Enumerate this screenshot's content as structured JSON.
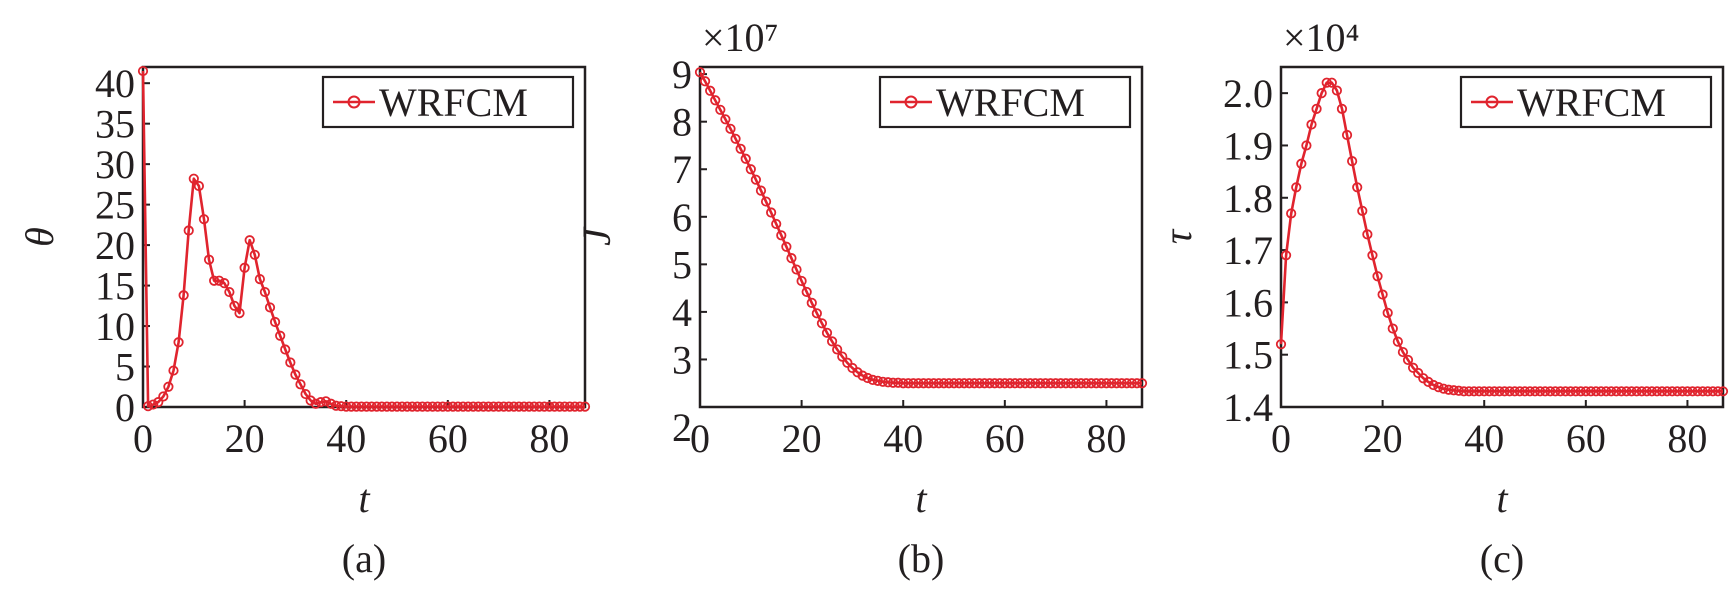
{
  "colors": {
    "series": "#e0242e",
    "ink": "#231f20"
  },
  "chart_data": [
    {
      "type": "line",
      "panel_label": "(a)",
      "xlabel": "t",
      "ylabel": "θ",
      "multiplier": "",
      "xlim": [
        0,
        87
      ],
      "ylim": [
        0,
        42
      ],
      "xticks": [
        0,
        20,
        40,
        60,
        80
      ],
      "yticks": [
        0,
        5,
        10,
        15,
        20,
        25,
        30,
        35,
        40
      ],
      "ytick_labels": [
        "0",
        "5",
        "10",
        "15",
        "20",
        "25",
        "30",
        "35",
        "40"
      ],
      "legend_position": "top-right",
      "series": [
        {
          "name": "WRFCM",
          "x": [
            0,
            1,
            2,
            3,
            4,
            5,
            6,
            7,
            8,
            9,
            10,
            11,
            12,
            13,
            14,
            15,
            16,
            17,
            18,
            19,
            20,
            21,
            22,
            23,
            24,
            25,
            26,
            27,
            28,
            29,
            30,
            31,
            32,
            33,
            34,
            35,
            36,
            37,
            38,
            39,
            40,
            41,
            42,
            43,
            44,
            45,
            46,
            47,
            48,
            49,
            50,
            51,
            52,
            53,
            54,
            55,
            56,
            57,
            58,
            59,
            60,
            61,
            62,
            63,
            64,
            65,
            66,
            67,
            68,
            69,
            70,
            71,
            72,
            73,
            74,
            75,
            76,
            77,
            78,
            79,
            80,
            81,
            82,
            83,
            84,
            85,
            86,
            87
          ],
          "y": [
            41.5,
            0.1,
            0.3,
            0.6,
            1.3,
            2.5,
            4.5,
            8,
            13.8,
            21.8,
            28.2,
            27.3,
            23.2,
            18.2,
            15.6,
            15.6,
            15.3,
            14.2,
            12.5,
            11.6,
            17.2,
            20.6,
            18.8,
            15.8,
            14.2,
            12.3,
            10.5,
            8.8,
            7.1,
            5.5,
            4.0,
            2.8,
            1.6,
            0.8,
            0.4,
            0.6,
            0.7,
            0.4,
            0.15,
            0.1,
            0.05,
            0.05,
            0.05,
            0.05,
            0.05,
            0.05,
            0.05,
            0.05,
            0.05,
            0.05,
            0.05,
            0.05,
            0.05,
            0.05,
            0.05,
            0.05,
            0.05,
            0.05,
            0.05,
            0.05,
            0.05,
            0.05,
            0.05,
            0.05,
            0.05,
            0.05,
            0.05,
            0.05,
            0.05,
            0.05,
            0.05,
            0.05,
            0.05,
            0.05,
            0.05,
            0.05,
            0.05,
            0.05,
            0.05,
            0.05,
            0.05,
            0.05,
            0.05,
            0.05,
            0.05,
            0.05,
            0.05,
            0.05
          ]
        }
      ]
    },
    {
      "type": "line",
      "panel_label": "(b)",
      "xlabel": "t",
      "ylabel": "J",
      "multiplier": "×10⁷",
      "xlim": [
        0,
        87
      ],
      "ylim": [
        2,
        9.15
      ],
      "xticks": [
        0,
        20,
        40,
        60,
        80
      ],
      "yticks": [
        2,
        3,
        4,
        5,
        6,
        7,
        8,
        9
      ],
      "ytick_labels": [
        "2",
        "3",
        "4",
        "5",
        "6",
        "7",
        "8",
        "9"
      ],
      "legend_position": "top-right",
      "series": [
        {
          "name": "WRFCM",
          "x": [
            0,
            1,
            2,
            3,
            4,
            5,
            6,
            7,
            8,
            9,
            10,
            11,
            12,
            13,
            14,
            15,
            16,
            17,
            18,
            19,
            20,
            21,
            22,
            23,
            24,
            25,
            26,
            27,
            28,
            29,
            30,
            31,
            32,
            33,
            34,
            35,
            36,
            37,
            38,
            39,
            40,
            41,
            42,
            43,
            44,
            45,
            46,
            47,
            48,
            49,
            50,
            51,
            52,
            53,
            54,
            55,
            56,
            57,
            58,
            59,
            60,
            61,
            62,
            63,
            64,
            65,
            66,
            67,
            68,
            69,
            70,
            71,
            72,
            73,
            74,
            75,
            76,
            77,
            78,
            79,
            80,
            81,
            82,
            83,
            84,
            85,
            86,
            87
          ],
          "y": [
            9.04,
            8.85,
            8.65,
            8.45,
            8.25,
            8.05,
            7.85,
            7.64,
            7.43,
            7.22,
            7.0,
            6.78,
            6.55,
            6.32,
            6.09,
            5.85,
            5.61,
            5.37,
            5.13,
            4.89,
            4.65,
            4.42,
            4.19,
            3.97,
            3.76,
            3.56,
            3.38,
            3.21,
            3.06,
            2.93,
            2.82,
            2.73,
            2.66,
            2.61,
            2.57,
            2.55,
            2.53,
            2.52,
            2.51,
            2.51,
            2.5,
            2.5,
            2.5,
            2.5,
            2.5,
            2.5,
            2.5,
            2.5,
            2.5,
            2.5,
            2.5,
            2.5,
            2.5,
            2.5,
            2.5,
            2.5,
            2.5,
            2.5,
            2.5,
            2.5,
            2.5,
            2.5,
            2.5,
            2.5,
            2.5,
            2.5,
            2.5,
            2.5,
            2.5,
            2.5,
            2.5,
            2.5,
            2.5,
            2.5,
            2.5,
            2.5,
            2.5,
            2.5,
            2.5,
            2.5,
            2.5,
            2.5,
            2.5,
            2.5,
            2.5,
            2.5,
            2.5,
            2.5
          ]
        }
      ]
    },
    {
      "type": "line",
      "panel_label": "(c)",
      "xlabel": "t",
      "ylabel": "τ",
      "multiplier": "×10⁴",
      "xlim": [
        0,
        87
      ],
      "ylim": [
        1.4,
        2.05
      ],
      "xticks": [
        0,
        20,
        40,
        60,
        80
      ],
      "yticks": [
        1.4,
        1.5,
        1.6,
        1.7,
        1.8,
        1.9,
        2.0
      ],
      "ytick_labels": [
        "1.4",
        "1.5",
        "1.6",
        "1.7",
        "1.8",
        "1.9",
        "2.0"
      ],
      "legend_position": "top-right",
      "series": [
        {
          "name": "WRFCM",
          "x": [
            0,
            1,
            2,
            3,
            4,
            5,
            6,
            7,
            8,
            9,
            10,
            11,
            12,
            13,
            14,
            15,
            16,
            17,
            18,
            19,
            20,
            21,
            22,
            23,
            24,
            25,
            26,
            27,
            28,
            29,
            30,
            31,
            32,
            33,
            34,
            35,
            36,
            37,
            38,
            39,
            40,
            41,
            42,
            43,
            44,
            45,
            46,
            47,
            48,
            49,
            50,
            51,
            52,
            53,
            54,
            55,
            56,
            57,
            58,
            59,
            60,
            61,
            62,
            63,
            64,
            65,
            66,
            67,
            68,
            69,
            70,
            71,
            72,
            73,
            74,
            75,
            76,
            77,
            78,
            79,
            80,
            81,
            82,
            83,
            84,
            85,
            86,
            87
          ],
          "y": [
            1.52,
            1.69,
            1.77,
            1.82,
            1.865,
            1.9,
            1.94,
            1.97,
            2.0,
            2.02,
            2.02,
            2.005,
            1.97,
            1.92,
            1.87,
            1.82,
            1.775,
            1.73,
            1.69,
            1.65,
            1.615,
            1.58,
            1.55,
            1.525,
            1.505,
            1.49,
            1.475,
            1.465,
            1.455,
            1.448,
            1.442,
            1.438,
            1.435,
            1.433,
            1.432,
            1.431,
            1.43,
            1.43,
            1.43,
            1.43,
            1.43,
            1.43,
            1.43,
            1.43,
            1.43,
            1.43,
            1.43,
            1.43,
            1.43,
            1.43,
            1.43,
            1.43,
            1.43,
            1.43,
            1.43,
            1.43,
            1.43,
            1.43,
            1.43,
            1.43,
            1.43,
            1.43,
            1.43,
            1.43,
            1.43,
            1.43,
            1.43,
            1.43,
            1.43,
            1.43,
            1.43,
            1.43,
            1.43,
            1.43,
            1.43,
            1.43,
            1.43,
            1.43,
            1.43,
            1.43,
            1.43,
            1.43,
            1.43,
            1.43,
            1.43,
            1.43,
            1.43,
            1.43
          ]
        }
      ]
    }
  ]
}
